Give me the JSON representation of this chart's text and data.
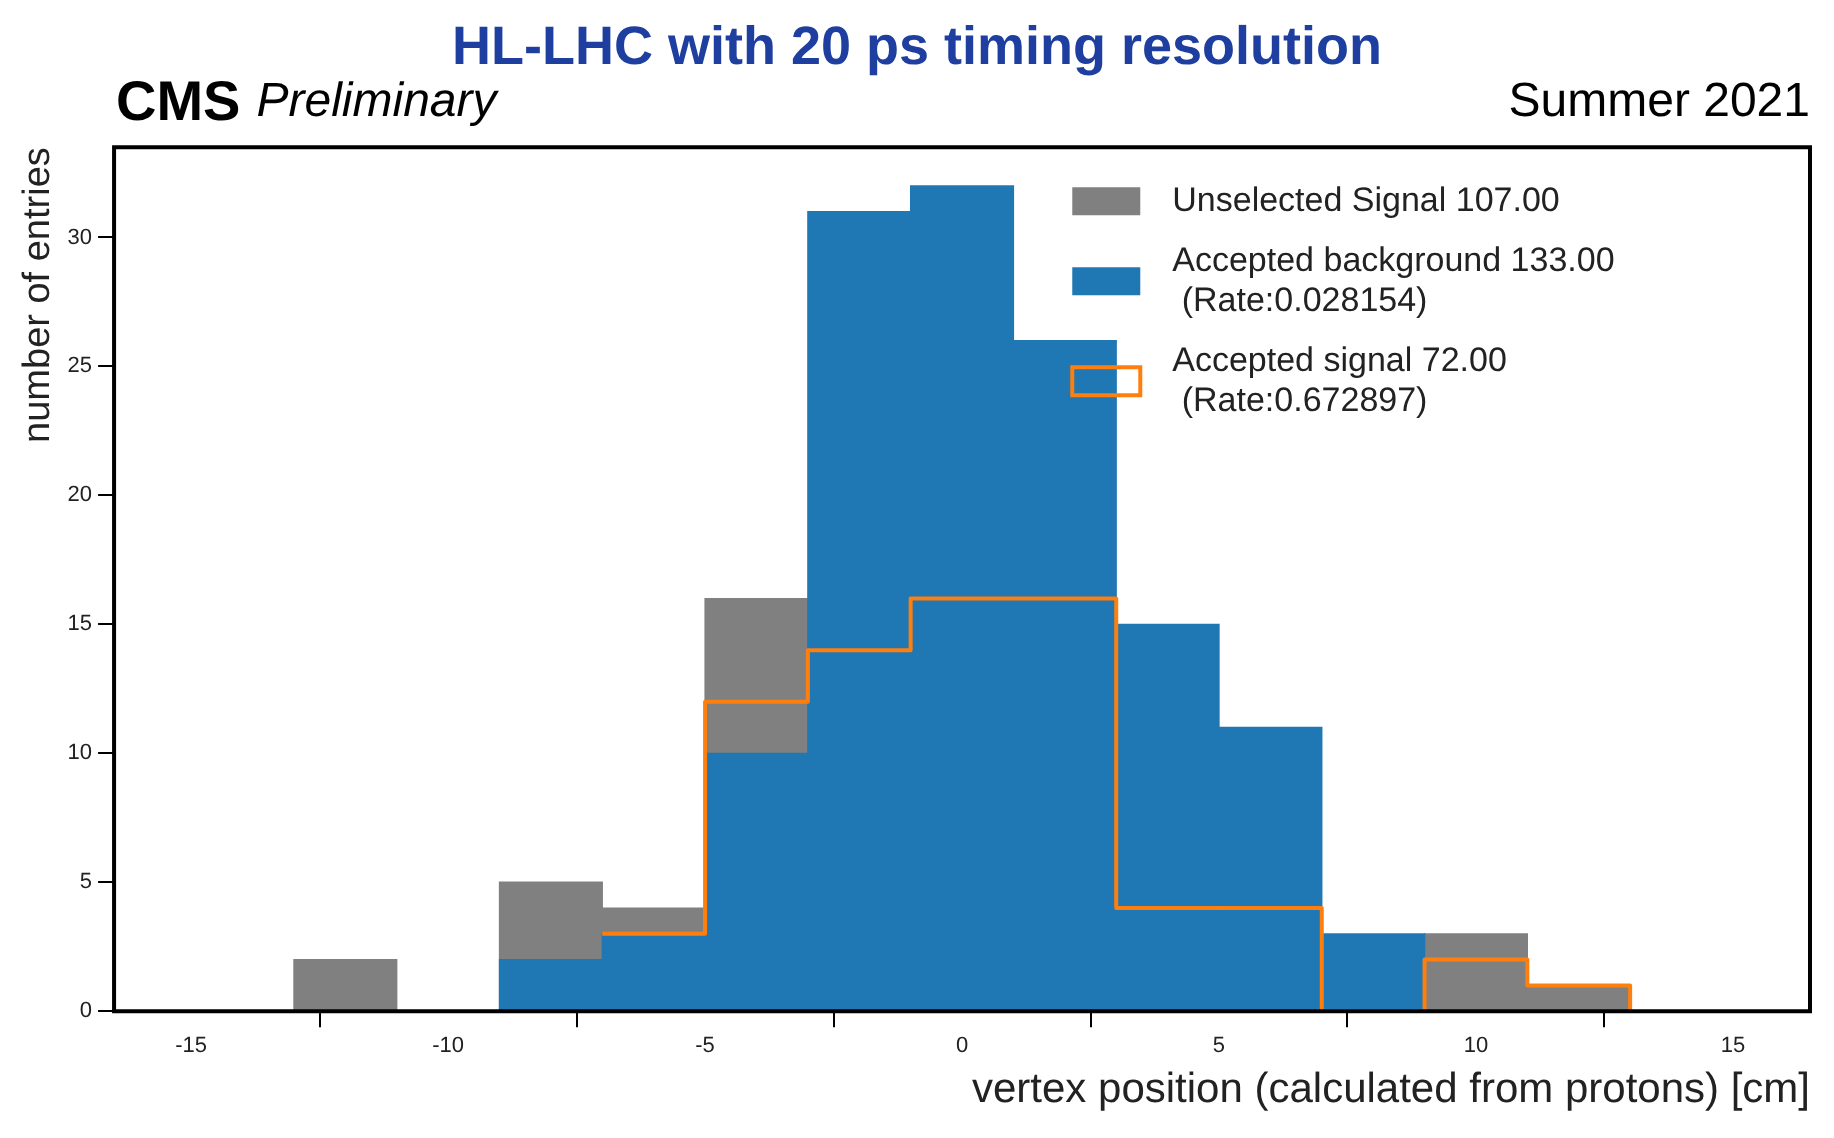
{
  "chart_data": {
    "type": "histogram",
    "title": "HL-LHC with 20 ps timing resolution",
    "annotations": [
      "CMS",
      "Preliminary",
      "Summer 2021"
    ],
    "xlabel": "vertex position (calculated from protons) [cm]",
    "ylabel": "number of entries",
    "bins": [
      -13,
      -11,
      -9,
      -7,
      -5,
      -3,
      -1,
      1,
      3,
      5,
      7,
      9,
      11,
      13
    ],
    "series": [
      {
        "name": "Unselected Signal 107.00",
        "color": "#808080",
        "values": [
          2,
          0,
          5,
          4,
          16,
          null,
          null,
          null,
          null,
          null,
          null,
          3,
          1
        ]
      },
      {
        "name": "Accepted background 133.00\n (Rate:0.028154)",
        "color": "#1f77b4",
        "values": [
          0,
          0,
          2,
          3,
          10,
          31,
          32,
          26,
          15,
          11,
          3,
          0,
          0
        ]
      },
      {
        "name": "Accepted signal 72.00\n (Rate:0.672897)",
        "color": "#ff7f0e",
        "type": "step",
        "x": [
          -7,
          -5,
          -3,
          -1,
          1,
          3,
          5,
          7,
          9,
          11,
          13
        ],
        "values": [
          3,
          12,
          14,
          16,
          16,
          4,
          4,
          0,
          2,
          1,
          0
        ]
      }
    ],
    "xlim": [
      -16.5,
      16.5
    ],
    "xticks": [
      -15,
      -10,
      -5,
      0,
      5,
      10,
      15
    ],
    "ylim": [
      0,
      33.5
    ],
    "yticks": [
      0,
      5,
      10,
      15,
      20,
      25,
      30
    ],
    "legend": "top right"
  }
}
